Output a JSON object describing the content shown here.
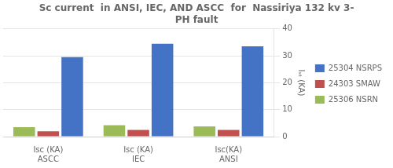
{
  "chart_data": {
    "type": "bar",
    "title": "Sc current  in ANSI, IEC, AND ASCC  for  Nassiriya 132 kv 3-\nPH fault",
    "categories": [
      "Isc (KA)\nASCC",
      "Isc (KA)\nIEC",
      "Isc(KA)\nANSI"
    ],
    "series": [
      {
        "name": "25306 NSRN",
        "color": "#9BBB59",
        "values": [
          3.5,
          4.2,
          3.8
        ]
      },
      {
        "name": "24303 SMAW",
        "color": "#C0504D",
        "values": [
          2.0,
          2.5,
          2.5
        ]
      },
      {
        "name": "25304 NSRPS",
        "color": "#4472C4",
        "values": [
          29.5,
          34.5,
          33.5
        ]
      }
    ],
    "ylabel": "Iₛₜ (KA)",
    "ylim": [
      0,
      40
    ],
    "yticks": [
      0,
      10,
      20,
      30,
      40
    ],
    "grid": true,
    "legend": "right"
  }
}
